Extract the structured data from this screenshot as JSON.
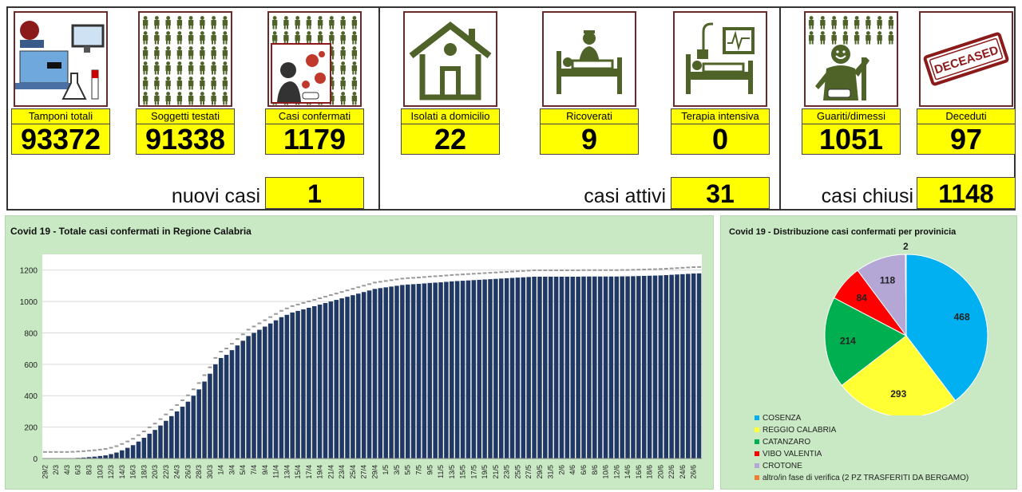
{
  "dashboard": {
    "cards": [
      {
        "label": "Tamponi totali",
        "value": "93372",
        "icon": "lab-equipment-icon"
      },
      {
        "label": "Soggetti testati",
        "value": "91338",
        "icon": "people-grid-icon"
      },
      {
        "label": "Casi confermati",
        "value": "1179",
        "icon": "virus-person-icon"
      },
      {
        "label": "Isolati a domicilio",
        "value": "22",
        "icon": "house-icon"
      },
      {
        "label": "Ricoverati",
        "value": "9",
        "icon": "hospital-bed-icon"
      },
      {
        "label": "Terapia intensiva",
        "value": "0",
        "icon": "intensive-care-icon"
      },
      {
        "label": "Guariti/dimessi",
        "value": "1051",
        "icon": "recovered-person-icon"
      },
      {
        "label": "Deceduti",
        "value": "97",
        "icon": "deceased-stamp-icon"
      }
    ],
    "stamp_text": "DECEASED",
    "summary": [
      {
        "label": "nuovi casi",
        "value": "1"
      },
      {
        "label": "casi attivi",
        "value": "31"
      },
      {
        "label": "casi chiusi",
        "value": "1148"
      }
    ]
  },
  "chart_data": [
    {
      "type": "bar",
      "title": "Covid 19 - Totale casi confermati in Regione Calabria",
      "bar_color": "#1f3864",
      "background": "#c9e8c4",
      "grid": true,
      "ylim": [
        0,
        1300
      ],
      "yticks": [
        0,
        200,
        400,
        600,
        800,
        1000,
        1200
      ],
      "start_date": "29/2",
      "end_date": "27/6",
      "xtick_labels": [
        "29/2",
        "2/3",
        "4/3",
        "6/3",
        "8/3",
        "10/3",
        "12/3",
        "14/3",
        "16/3",
        "18/3",
        "20/3",
        "22/3",
        "24/3",
        "26/3",
        "28/3",
        "30/3",
        "1/4",
        "3/4",
        "5/4",
        "7/4",
        "9/4",
        "11/4",
        "13/4",
        "15/4",
        "17/4",
        "19/4",
        "21/4",
        "23/4",
        "25/4",
        "27/4",
        "29/4",
        "1/5",
        "3/5",
        "5/5",
        "7/5",
        "9/5",
        "11/5",
        "13/5",
        "15/5",
        "17/5",
        "19/5",
        "21/5",
        "23/5",
        "25/5",
        "27/5",
        "29/5",
        "31/5",
        "2/6",
        "4/6",
        "6/6",
        "8/6",
        "10/6",
        "12/6",
        "14/6",
        "16/6",
        "18/6",
        "20/6",
        "22/6",
        "24/6",
        "26/6"
      ],
      "values": [
        1,
        1,
        1,
        1,
        1,
        2,
        4,
        6,
        9,
        12,
        16,
        20,
        28,
        38,
        52,
        68,
        85,
        108,
        132,
        158,
        182,
        210,
        240,
        270,
        300,
        330,
        362,
        400,
        440,
        490,
        540,
        600,
        640,
        660,
        690,
        720,
        750,
        780,
        800,
        820,
        840,
        860,
        880,
        900,
        915,
        930,
        940,
        950,
        960,
        970,
        980,
        990,
        1000,
        1010,
        1020,
        1030,
        1040,
        1050,
        1060,
        1070,
        1080,
        1085,
        1090,
        1095,
        1100,
        1105,
        1108,
        1110,
        1112,
        1115,
        1118,
        1120,
        1122,
        1125,
        1128,
        1130,
        1132,
        1134,
        1136,
        1138,
        1140,
        1142,
        1144,
        1146,
        1148,
        1150,
        1152,
        1154,
        1156,
        1158,
        1158,
        1158,
        1158,
        1158,
        1158,
        1158,
        1158,
        1158,
        1159,
        1159,
        1159,
        1159,
        1159,
        1159,
        1159,
        1160,
        1160,
        1161,
        1162,
        1163,
        1164,
        1165,
        1166,
        1168,
        1170,
        1172,
        1174,
        1176,
        1178,
        1179
      ]
    },
    {
      "type": "pie",
      "title": "Covid 19 - Distribuzione casi confermati per provinicia",
      "slices": [
        {
          "name": "COSENZA",
          "value": 468,
          "color": "#00b0f0"
        },
        {
          "name": "REGGIO CALABRIA",
          "value": 293,
          "color": "#ffff33"
        },
        {
          "name": "CATANZARO",
          "value": 214,
          "color": "#00b050"
        },
        {
          "name": "VIBO VALENTIA",
          "value": 84,
          "color": "#ff0000"
        },
        {
          "name": "CROTONE",
          "value": 118,
          "color": "#b4a7d6"
        },
        {
          "name": "altro/in fase di verifica (2 PZ TRASFERITI DA BERGAMO)",
          "value": 2,
          "color": "#ed7d31"
        }
      ]
    }
  ]
}
